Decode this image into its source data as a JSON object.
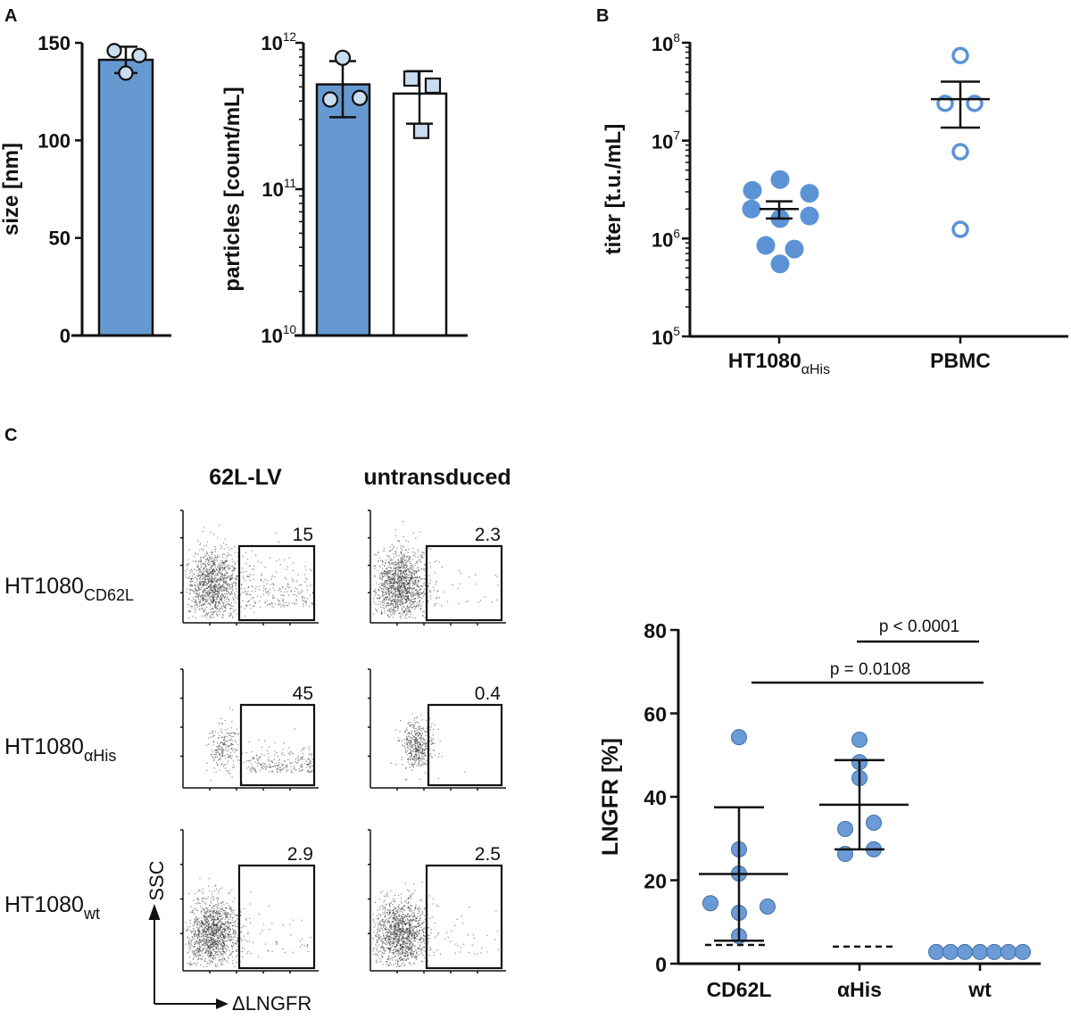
{
  "panel_labels": {
    "a": "A",
    "b": "B",
    "c": "C"
  },
  "colors": {
    "bar_blue": "#6699d0",
    "point_light": "#c9dcf0",
    "point_blue": "#6a9bd6",
    "point_stroke": "#3f6fa6",
    "open_circle": "#5b93d6",
    "axis": "#111111"
  },
  "chart_data": [
    {
      "id": "A-size",
      "type": "bar",
      "ylabel": "size [nm]",
      "ylim": [
        0,
        150
      ],
      "yticks": [
        "0",
        "50",
        "100",
        "150"
      ],
      "categories": [
        ""
      ],
      "values": [
        141.3
      ],
      "error": [
        [
          134.5,
          148
        ]
      ],
      "points": [
        [
          146,
          143.5,
          134.5
        ]
      ],
      "bar_fill": [
        "#6699d0"
      ],
      "marker": "circle"
    },
    {
      "id": "A-particles",
      "type": "bar",
      "ylabel": "particles [count/mL]",
      "yscale": "log",
      "ylim": [
        10000000000.0,
        1000000000000.0
      ],
      "yticks": [
        {
          "base": "10",
          "exp": "10"
        },
        {
          "base": "10",
          "exp": "11"
        },
        {
          "base": "10",
          "exp": "12"
        }
      ],
      "categories": [
        "",
        ""
      ],
      "values": [
        520000000000.0,
        450000000000.0
      ],
      "error": [
        [
          310000000000.0,
          750000000000.0
        ],
        [
          280000000000.0,
          640000000000.0
        ]
      ],
      "points": [
        [
          790000000000.0,
          410000000000.0,
          420000000000.0
        ],
        [
          570000000000.0,
          510000000000.0,
          250000000000.0
        ]
      ],
      "bar_fill": [
        "#6699d0",
        "#ffffff"
      ],
      "marker": [
        "circle",
        "square"
      ]
    },
    {
      "id": "B-titer",
      "type": "scatter",
      "ylabel": "titer [t.u./mL]",
      "yscale": "log",
      "ylim": [
        100000.0,
        100000000.0
      ],
      "yticks": [
        {
          "base": "10",
          "exp": "5"
        },
        {
          "base": "10",
          "exp": "6"
        },
        {
          "base": "10",
          "exp": "7"
        },
        {
          "base": "10",
          "exp": "8"
        }
      ],
      "categories": [
        {
          "main": "HT1080",
          "sub": "αHis"
        },
        {
          "main": "PBMC",
          "sub": ""
        }
      ],
      "points": [
        [
          3100000.0,
          4000000.0,
          2900000.0,
          2000000.0,
          1600000.0,
          1700000.0,
          850000.0,
          780000.0,
          550000.0
        ],
        [
          74000000.0,
          24000000.0,
          24000000.0,
          7700000.0,
          1240000.0
        ]
      ],
      "mean": [
        2000000.0,
        26500000.0
      ],
      "error": [
        [
          1600000.0,
          2400000.0
        ],
        [
          13600000.0,
          40000000.0
        ]
      ],
      "marker": [
        "filled-circle",
        "open-circle"
      ]
    },
    {
      "id": "C-LNGFR",
      "type": "scatter",
      "ylabel": "LNGFR [%]",
      "ylim": [
        0,
        80
      ],
      "yticks": [
        "0",
        "20",
        "40",
        "60",
        "80"
      ],
      "categories": [
        "CD62L",
        "αHis",
        "wt"
      ],
      "points": [
        [
          54.3,
          27.4,
          21.6,
          14.5,
          13.7,
          12.2,
          6.6
        ],
        [
          53.7,
          48.3,
          44.5,
          32.3,
          33.8,
          26.3,
          27.4
        ],
        [
          2.8,
          2.8,
          2.8,
          2.8,
          2.8,
          2.8,
          2.8
        ]
      ],
      "mean": [
        21.5,
        38.1,
        null
      ],
      "error": [
        [
          5.5,
          37.5
        ],
        [
          27.4,
          48.8
        ],
        null
      ],
      "background_dashed": [
        4.5,
        4.1,
        2.8
      ],
      "annotations": [
        {
          "text": "p < 0.0001",
          "from": "αHis",
          "to": "wt"
        },
        {
          "text": "p = 0.0108",
          "from": "CD62L",
          "to": "wt"
        }
      ]
    }
  ],
  "flow": {
    "columns": [
      "62L-LV",
      "untransduced"
    ],
    "rows": [
      {
        "main": "HT1080",
        "sub": "CD62L"
      },
      {
        "main": "HT1080",
        "sub": "αHis"
      },
      {
        "main": "HT1080",
        "sub": "wt"
      }
    ],
    "gate_values": [
      [
        "15",
        "2.3"
      ],
      [
        "45",
        "0.4"
      ],
      [
        "2.9",
        "2.5"
      ]
    ],
    "y_axis": "SSC",
    "x_axis": "ΔLNGFR"
  }
}
